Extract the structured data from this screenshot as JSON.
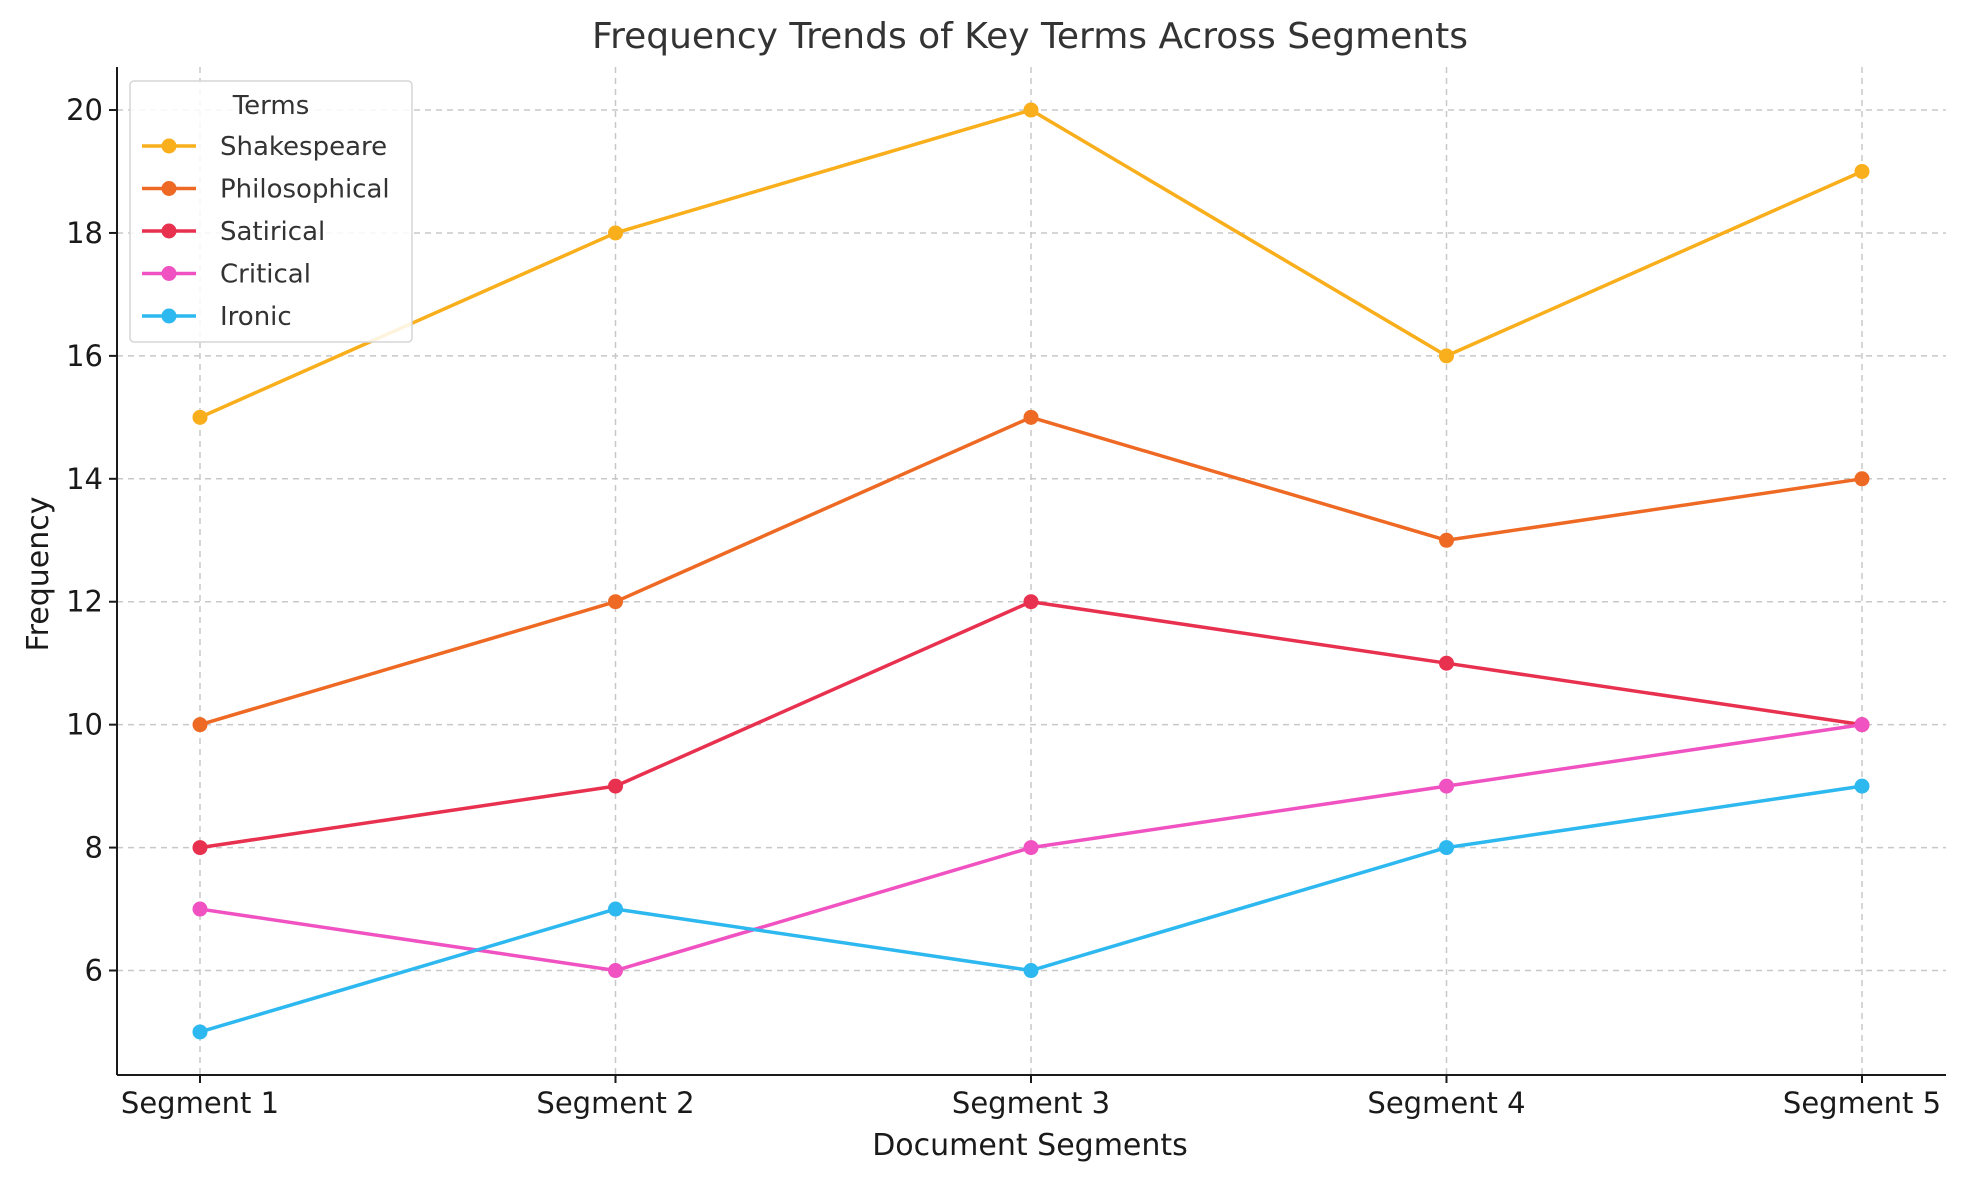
{
  "chart_data": {
    "type": "line",
    "title": "Frequency Trends of Key Terms Across Segments",
    "xlabel": "Document Segments",
    "ylabel": "Frequency",
    "categories": [
      "Segment 1",
      "Segment 2",
      "Segment 3",
      "Segment 4",
      "Segment 5"
    ],
    "ylim": [
      4.3,
      20.7
    ],
    "yticks": [
      6,
      8,
      10,
      12,
      14,
      16,
      18,
      20
    ],
    "grid": true,
    "legend": {
      "title": "Terms",
      "placement": "top-left"
    },
    "series": [
      {
        "name": "Shakespeare",
        "color": "#F9AE1B",
        "values": [
          15,
          18,
          20,
          16,
          19
        ]
      },
      {
        "name": "Philosophical",
        "color": "#EE6A24",
        "values": [
          10,
          12,
          15,
          13,
          14
        ]
      },
      {
        "name": "Satirical",
        "color": "#E8304F",
        "values": [
          8,
          9,
          12,
          11,
          10
        ]
      },
      {
        "name": "Critical",
        "color": "#F052C2",
        "values": [
          7,
          6,
          8,
          9,
          10
        ]
      },
      {
        "name": "Ironic",
        "color": "#2DB8EF",
        "values": [
          5,
          7,
          6,
          8,
          9
        ]
      }
    ]
  }
}
